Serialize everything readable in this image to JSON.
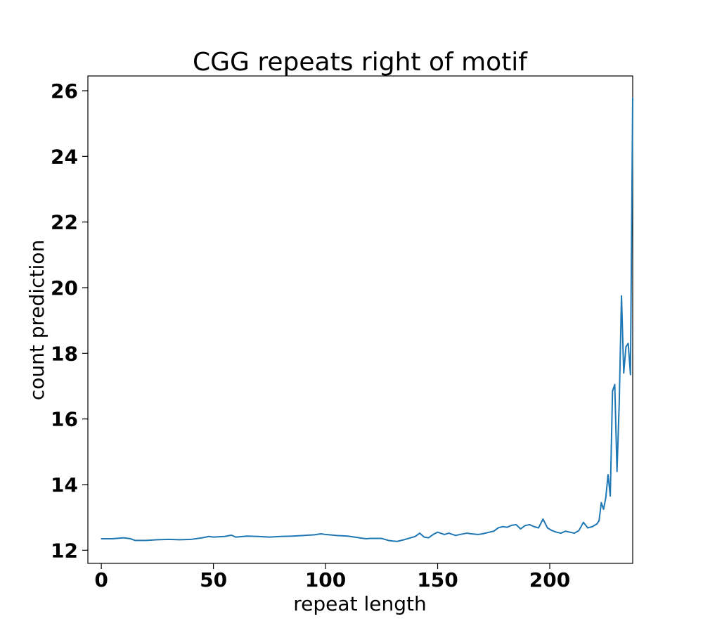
{
  "chart_data": {
    "type": "line",
    "title": "CGG repeats right of motif",
    "xlabel": "repeat length",
    "ylabel": "count prediction",
    "xlim": [
      -6,
      237
    ],
    "ylim": [
      11.6,
      26.45
    ],
    "xticks": [
      0,
      50,
      100,
      150,
      200
    ],
    "yticks": [
      12,
      14,
      16,
      18,
      20,
      22,
      24,
      26
    ],
    "grid": false,
    "line_color": "#1f77b4",
    "series": [
      {
        "x": [
          0,
          5,
          10,
          13,
          15,
          20,
          25,
          30,
          35,
          40,
          45,
          48,
          50,
          55,
          58,
          60,
          65,
          70,
          75,
          80,
          85,
          90,
          95,
          98,
          100,
          105,
          110,
          115,
          118,
          120,
          125,
          128,
          130,
          132,
          135,
          138,
          140,
          142,
          144,
          146,
          148,
          150,
          153,
          155,
          158,
          160,
          163,
          165,
          168,
          170,
          173,
          175,
          177,
          179,
          181,
          183,
          185,
          187,
          189,
          191,
          193,
          195,
          197,
          199,
          201,
          203,
          205,
          207,
          209,
          211,
          213,
          215,
          217,
          219,
          221,
          222,
          223,
          224,
          225,
          226,
          227,
          228,
          229,
          230,
          231,
          232,
          233,
          234,
          235,
          236,
          237
        ],
        "y": [
          12.35,
          12.35,
          12.38,
          12.35,
          12.3,
          12.3,
          12.32,
          12.33,
          12.32,
          12.33,
          12.38,
          12.42,
          12.4,
          12.42,
          12.46,
          12.4,
          12.43,
          12.42,
          12.4,
          12.42,
          12.43,
          12.45,
          12.47,
          12.5,
          12.48,
          12.45,
          12.43,
          12.38,
          12.35,
          12.36,
          12.36,
          12.3,
          12.28,
          12.27,
          12.32,
          12.38,
          12.42,
          12.52,
          12.4,
          12.38,
          12.48,
          12.55,
          12.48,
          12.52,
          12.45,
          12.48,
          12.52,
          12.5,
          12.48,
          12.5,
          12.55,
          12.58,
          12.68,
          12.72,
          12.7,
          12.76,
          12.78,
          12.65,
          12.75,
          12.78,
          12.72,
          12.68,
          12.95,
          12.68,
          12.6,
          12.55,
          12.52,
          12.58,
          12.55,
          12.52,
          12.6,
          12.85,
          12.68,
          12.72,
          12.8,
          12.9,
          13.45,
          13.25,
          13.6,
          14.3,
          13.65,
          16.85,
          17.05,
          14.4,
          16.5,
          19.75,
          17.4,
          18.2,
          18.3,
          17.35,
          25.78
        ]
      }
    ]
  }
}
